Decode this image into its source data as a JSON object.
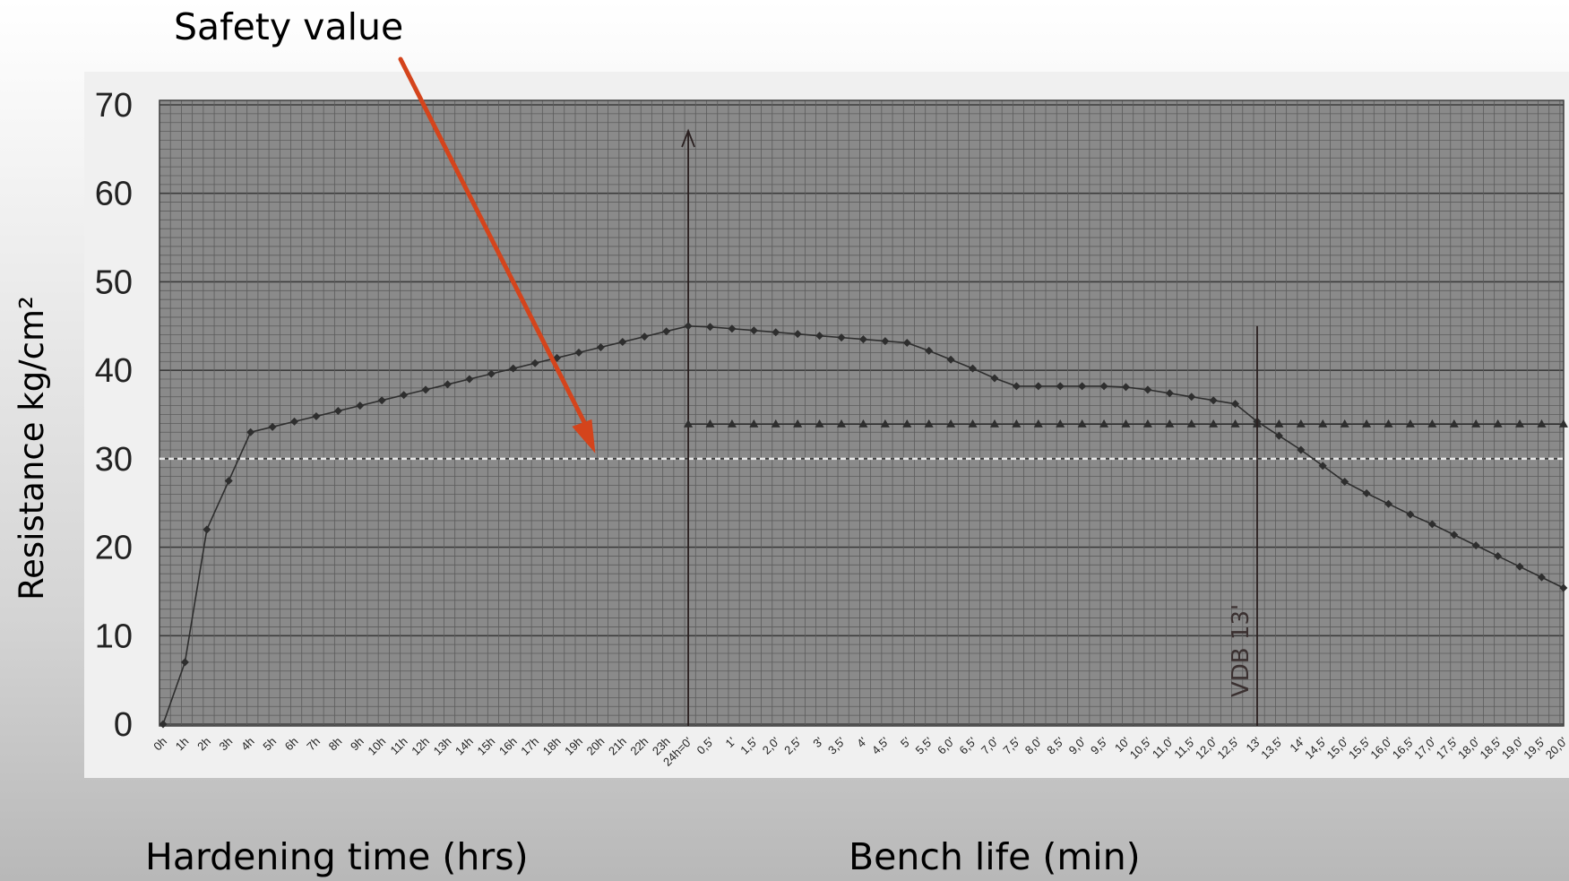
{
  "chart_data": {
    "type": "line",
    "ylabel": "Resistance kg/cm²",
    "xlabel_left": "Hardening time (hrs)",
    "xlabel_right": "Bench life (min)",
    "ylim": [
      0,
      70
    ],
    "yticks": [
      "0",
      "10",
      "20",
      "30",
      "40",
      "50",
      "60",
      "70"
    ],
    "grid": true,
    "annotation": {
      "text": "Safety value",
      "value": 30
    },
    "marker_label": "VDB 13'",
    "hardening": {
      "categories": [
        "0h",
        "1h",
        "2h",
        "3h",
        "4h",
        "5h",
        "6h",
        "7h",
        "8h",
        "9h",
        "10h",
        "11h",
        "12h",
        "13h",
        "14h",
        "15h",
        "16h",
        "17h",
        "18h",
        "19h",
        "20h",
        "21h",
        "22h",
        "23h",
        "24h=0'"
      ],
      "values": [
        0,
        7,
        22,
        27.5,
        33,
        33.6,
        34.2,
        34.8,
        35.4,
        36,
        36.6,
        37.2,
        37.8,
        38.4,
        39,
        39.6,
        40.2,
        40.8,
        41.4,
        42,
        42.6,
        43.2,
        43.8,
        44.4,
        45
      ]
    },
    "bench_life": {
      "categories": [
        "0,5'",
        "1'",
        "1,5'",
        "2,0'",
        "2,5'",
        "3'",
        "3,5'",
        "4'",
        "4,5'",
        "5'",
        "5,5'",
        "6,0'",
        "6,5'",
        "7,0'",
        "7,5'",
        "8,0'",
        "8,5'",
        "9,0'",
        "9,5'",
        "10'",
        "10,5'",
        "11,0'",
        "11,5'",
        "12,0'",
        "12,5'",
        "13'",
        "13,5'",
        "14'",
        "14,5'",
        "15,0'",
        "15,5'",
        "16,0'",
        "16,5'",
        "17,0'",
        "17,5'",
        "18,0'",
        "18,5'",
        "19,0'",
        "19,5'",
        "20,0'"
      ],
      "series": [
        {
          "marker": "diamond",
          "values": [
            44.9,
            44.7,
            44.5,
            44.3,
            44.1,
            43.9,
            43.7,
            43.5,
            43.3,
            43.1,
            42.2,
            41.2,
            40.2,
            39.1,
            38.2,
            38.2,
            38.2,
            38.2,
            38.2,
            38.1,
            37.8,
            37.4,
            37,
            36.6,
            36.2,
            34.2,
            32.6,
            31,
            29.2,
            27.4,
            26.1,
            24.9,
            23.7,
            22.6,
            21.4,
            20.2,
            19,
            17.8,
            16.6,
            15.4
          ]
        },
        {
          "marker": "triangle",
          "values": [
            33.9,
            33.9,
            33.9,
            33.9,
            33.9,
            33.9,
            33.9,
            33.9,
            33.9,
            33.9,
            33.9,
            33.9,
            33.9,
            33.9,
            33.9,
            33.9,
            33.9,
            33.9,
            33.9,
            33.9,
            33.9,
            33.9,
            33.9,
            33.9,
            33.9,
            33.9,
            33.9,
            33.9,
            33.9,
            33.9,
            33.9,
            33.9,
            33.9,
            33.9,
            33.9,
            33.9,
            33.9,
            33.9,
            33.9,
            33.9
          ]
        }
      ]
    },
    "colors": {
      "plot_bg": "#8a8a8a",
      "grid_minor": "#5c5c5c",
      "grid_major": "#3c3c3c",
      "line": "#2e2e2e",
      "safety_line": "#e8e8e8",
      "arrow": "#d4441c"
    }
  }
}
